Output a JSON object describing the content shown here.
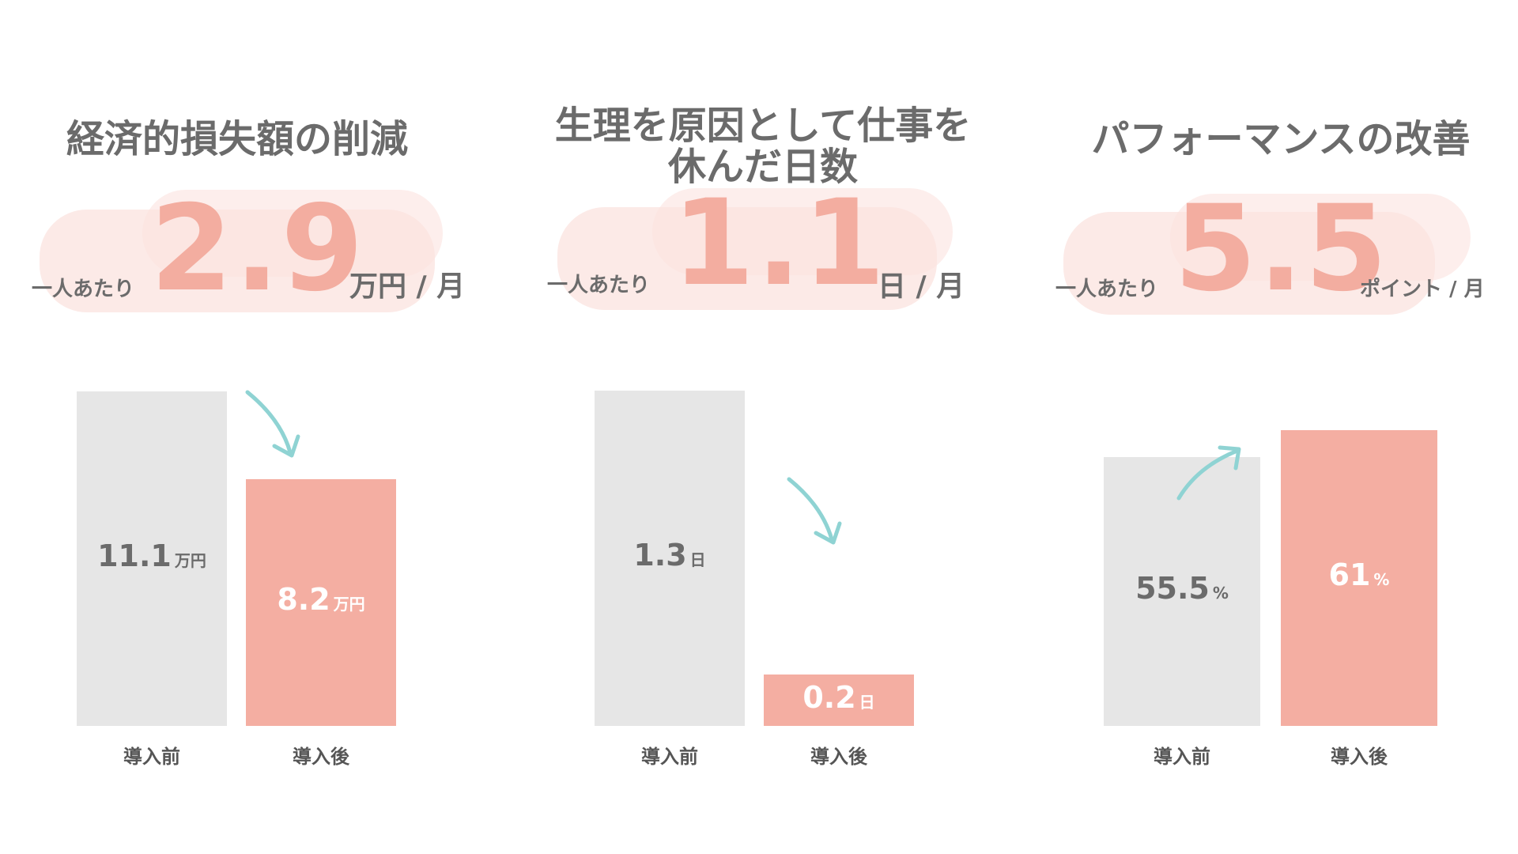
{
  "colors": {
    "before_bar": "#e6e6e6",
    "after_bar": "#f4aea2",
    "highlight_number": "#f3ada0",
    "text": "#6b6b6b",
    "arrow": "#8fd3d3",
    "blob": "#fbe3df"
  },
  "panels": [
    {
      "title": "経済的損失額の削減",
      "per_person": "一人あたり",
      "big_number": "2.9",
      "big_unit": "万円 / 月",
      "arrow_direction": "down"
    },
    {
      "title": "生理を原因として仕事を\n休んだ日数",
      "per_person": "一人あたり",
      "big_number": "1.1",
      "big_unit": "日 / 月",
      "arrow_direction": "down"
    },
    {
      "title": "パフォーマンスの改善",
      "per_person": "一人あたり",
      "big_number": "5.5",
      "big_unit": "ポイント / 月",
      "arrow_direction": "up"
    }
  ],
  "chart_data": [
    {
      "type": "bar",
      "categories": [
        "導入前",
        "導入後"
      ],
      "values": [
        11.1,
        8.2
      ],
      "value_labels": [
        "11.1",
        "8.2"
      ],
      "unit": "万円",
      "ylim": [
        0,
        11.1
      ]
    },
    {
      "type": "bar",
      "categories": [
        "導入前",
        "導入後"
      ],
      "values": [
        1.3,
        0.2
      ],
      "value_labels": [
        "1.3",
        "0.2"
      ],
      "unit": "日",
      "ylim": [
        0,
        1.3
      ]
    },
    {
      "type": "bar",
      "categories": [
        "導入前",
        "導入後"
      ],
      "values": [
        55.5,
        61
      ],
      "value_labels": [
        "55.5",
        "61"
      ],
      "unit": "%",
      "ylim": [
        0,
        64
      ]
    }
  ]
}
